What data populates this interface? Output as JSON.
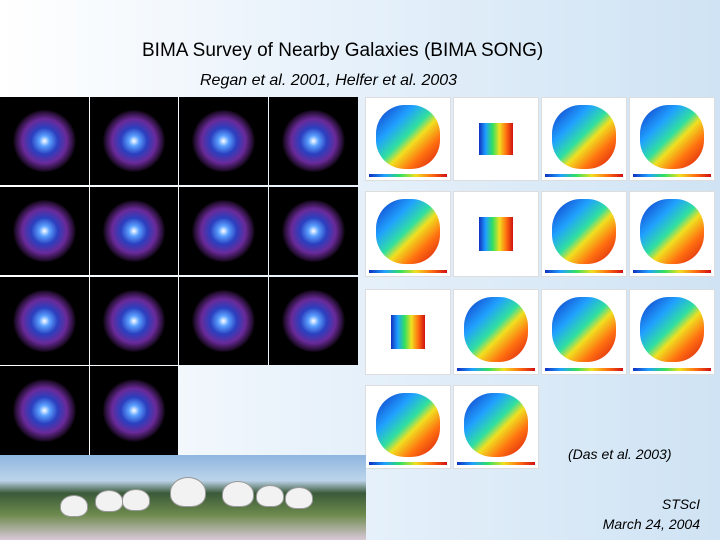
{
  "header": {
    "title": "BIMA Survey of Nearby Galaxies (BIMA SONG)",
    "subtitle": "Regan et al. 2001, Helfer et al. 2003"
  },
  "citation": "(Das et al. 2003)",
  "footer": {
    "institution": "STScI",
    "date": "March 24, 2004"
  }
}
